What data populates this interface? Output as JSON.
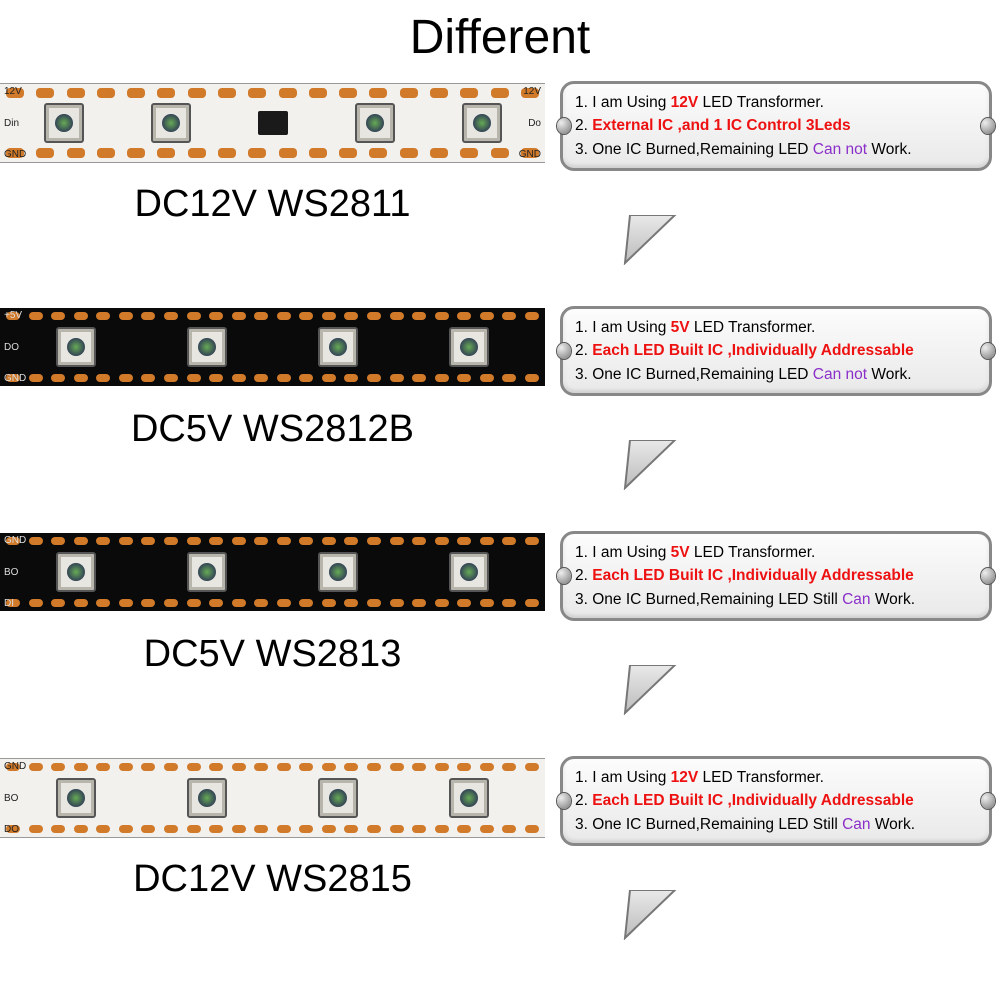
{
  "title": "Different",
  "colors": {
    "red": "#ee1111",
    "purple": "#8b2fc9",
    "black": "#000000",
    "pad": "#d07a2a",
    "strip_white": "#f2f1ee",
    "strip_black": "#0a0a0a",
    "bubble_border": "#888888"
  },
  "rows": [
    {
      "strip_bg": "white",
      "label": "DC12V WS2811",
      "has_external_ic": true,
      "pad_count": 18,
      "led_count": 4,
      "side_labels": {
        "tl": "12V",
        "ml": "Din",
        "bl": "GND",
        "tr": "12V",
        "mr": "Do",
        "br": "GND"
      },
      "bubble": {
        "l1_pre": "1. I am Using ",
        "l1_hl": "12V",
        "l1_post": " LED Transformer.",
        "l2_pre": "2. ",
        "l2_hl": "External IC ,and 1 IC Control 3Leds",
        "l2_post": "",
        "l3_pre": "3. One IC Burned,Remaining LED ",
        "l3_hl": "Can not",
        "l3_post": " Work."
      }
    },
    {
      "strip_bg": "black",
      "label": "DC5V WS2812B",
      "has_external_ic": false,
      "pad_count": 24,
      "led_count": 4,
      "side_labels": {
        "tl": "+5V",
        "ml": "DO",
        "bl": "GND"
      },
      "bubble": {
        "l1_pre": "1. I am Using ",
        "l1_hl": "5V",
        "l1_post": " LED Transformer.",
        "l2_pre": "2. ",
        "l2_hl": "Each LED Built IC ,Individually Addressable",
        "l2_post": "",
        "l3_pre": "3. One IC Burned,Remaining LED ",
        "l3_hl": "Can not",
        "l3_post": " Work."
      }
    },
    {
      "strip_bg": "black",
      "label": "DC5V WS2813",
      "has_external_ic": false,
      "pad_count": 24,
      "led_count": 4,
      "side_labels": {
        "tl": "GND",
        "ml": "BO",
        "bl": "DI"
      },
      "bubble": {
        "l1_pre": "1. I am Using ",
        "l1_hl": "5V",
        "l1_post": " LED Transformer.",
        "l2_pre": "2. ",
        "l2_hl": "Each LED Built IC ,Individually Addressable",
        "l2_post": "",
        "l3_pre": "3. One IC Burned,Remaining LED Still ",
        "l3_hl": "Can",
        "l3_post": " Work."
      }
    },
    {
      "strip_bg": "white",
      "label": "DC12V WS2815",
      "has_external_ic": false,
      "pad_count": 24,
      "led_count": 4,
      "side_labels": {
        "tl": "GND",
        "ml": "BO",
        "bl": "DO"
      },
      "bubble": {
        "l1_pre": "1. I am Using ",
        "l1_hl": "12V",
        "l1_post": " LED Transformer.",
        "l2_pre": "2. ",
        "l2_hl": "Each LED Built IC ,Individually Addressable",
        "l2_post": "",
        "l3_pre": "3. One IC Burned,Remaining LED Still ",
        "l3_hl": "Can",
        "l3_post": " Work."
      }
    }
  ]
}
